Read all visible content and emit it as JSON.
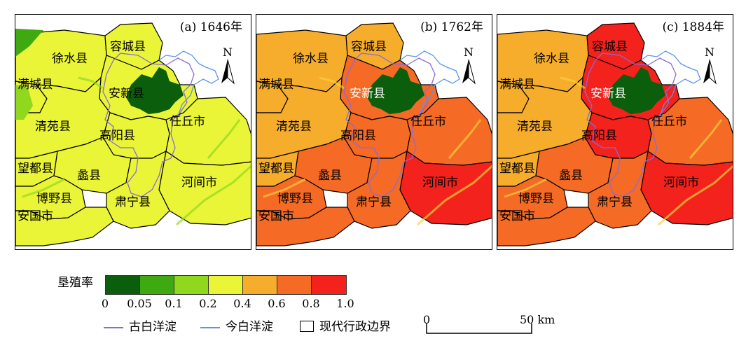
{
  "panels": [
    {
      "title": "(a) 1646年",
      "counties": {
        "xushui": "徐水县",
        "rongcheng": "容城县",
        "mancheng": "满城县",
        "anxin": "安新县",
        "qingyuan": "清苑县",
        "gaoyang": "高阳县",
        "renqiu": "任丘市",
        "wangdu": "望都县",
        "lixian": "蠡县",
        "boye": "博野县",
        "hejian": "河间市",
        "suning": "肃宁县",
        "anguo": "安国市"
      },
      "county_rates": {
        "xushui": 0.3,
        "rongcheng": 0.3,
        "mancheng": 0.3,
        "anxin": 0.3,
        "qingyuan": 0.3,
        "gaoyang": 0.3,
        "renqiu": 0.3,
        "wangdu": 0.3,
        "lixian": 0.3,
        "boye": 0.3,
        "hejian": 0.3,
        "suning": 0.3,
        "anguo": 0.3
      }
    },
    {
      "title": "(b) 1762年",
      "counties": {
        "xushui": "徐水县",
        "rongcheng": "容城县",
        "mancheng": "满城县",
        "anxin": "安新县",
        "qingyuan": "清苑县",
        "gaoyang": "高阳县",
        "renqiu": "任丘市",
        "wangdu": "望都县",
        "lixian": "蠡县",
        "boye": "博野县",
        "hejian": "河间市",
        "suning": "肃宁县",
        "anguo": "安国市"
      },
      "county_rates": {
        "xushui": 0.5,
        "rongcheng": 0.5,
        "mancheng": 0.5,
        "anxin": 0.7,
        "qingyuan": 0.5,
        "gaoyang": 0.7,
        "renqiu": 0.7,
        "wangdu": 0.5,
        "lixian": 0.7,
        "boye": 0.7,
        "hejian": 0.9,
        "suning": 0.7,
        "anguo": 0.7
      }
    },
    {
      "title": "(c) 1884年",
      "counties": {
        "xushui": "徐水县",
        "rongcheng": "容城县",
        "mancheng": "满城县",
        "anxin": "安新县",
        "qingyuan": "清苑县",
        "gaoyang": "高阳县",
        "renqiu": "任丘市",
        "wangdu": "望都县",
        "lixian": "蠡县",
        "boye": "博野县",
        "hejian": "河间市",
        "suning": "肃宁县",
        "anguo": "安国市"
      },
      "county_rates": {
        "xushui": 0.5,
        "rongcheng": 0.9,
        "mancheng": 0.5,
        "anxin": 0.9,
        "qingyuan": 0.5,
        "gaoyang": 0.9,
        "renqiu": 0.7,
        "wangdu": 0.5,
        "lixian": 0.7,
        "boye": 0.7,
        "hejian": 0.9,
        "suning": 0.7,
        "anguo": 0.7
      }
    }
  ],
  "north_label": "N",
  "legend": {
    "title": "垦殖率",
    "classes": [
      {
        "range": [
          0,
          0.05
        ],
        "color": "#0b5e0b"
      },
      {
        "range": [
          0.05,
          0.1
        ],
        "color": "#3fa912"
      },
      {
        "range": [
          0.1,
          0.2
        ],
        "color": "#8fd81e"
      },
      {
        "range": [
          0.2,
          0.4
        ],
        "color": "#e9f536"
      },
      {
        "range": [
          0.4,
          0.6
        ],
        "color": "#f6ad2b"
      },
      {
        "range": [
          0.6,
          0.8
        ],
        "color": "#f56a24"
      },
      {
        "range": [
          0.8,
          1.0
        ],
        "color": "#f3221c"
      }
    ],
    "tick_labels": [
      "0",
      "0.05",
      "0.1",
      "0.2",
      "0.4",
      "0.6",
      "0.8",
      "1.0"
    ],
    "ancient_lake": {
      "label": "古白洋淀",
      "color": "#8a6ad8"
    },
    "modern_lake": {
      "label": "今白洋淀",
      "color": "#5b94e8"
    },
    "boundary": {
      "label": "现代行政边界"
    }
  },
  "scale": {
    "start": "0",
    "end": "50 km"
  },
  "lake_color": "#0b5e0b"
}
